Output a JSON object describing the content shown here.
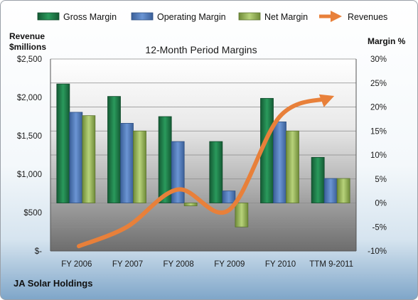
{
  "chart_data": {
    "type": "bar",
    "title": "12-Month Period Margins",
    "categories": [
      "FY 2006",
      "FY 2007",
      "FY 2008",
      "FY 2009",
      "FY 2010",
      "TTM 9-2011"
    ],
    "series": [
      {
        "name": "Gross Margin",
        "values": [
          24.8,
          22.2,
          18.0,
          12.8,
          21.8,
          9.5
        ],
        "color": "#1f7a4a"
      },
      {
        "name": "Operating Margin",
        "values": [
          18.9,
          16.6,
          12.8,
          2.5,
          16.9,
          5.1
        ],
        "color": "#4f7cc0"
      },
      {
        "name": "Net Margin",
        "values": [
          18.2,
          15.0,
          -0.6,
          -5.0,
          15.0,
          5.1
        ],
        "color": "#9aba5a"
      }
    ],
    "line_series": {
      "name": "Revenues",
      "values": [
        -9.0,
        -5.0,
        2.8,
        -1.5,
        18.0,
        21.8
      ],
      "color": "#e8803a"
    },
    "y_left": {
      "label_line1": "Revenue",
      "label_line2": "$millions",
      "ticks": [
        "$2,500",
        "$2,000",
        "$1,500",
        "$1,000",
        "$500",
        "$-"
      ]
    },
    "y_right": {
      "label": "Margin %",
      "ticks": [
        "30%",
        "25%",
        "20%",
        "15%",
        "10%",
        "5%",
        "0%",
        "-5%",
        "-10%"
      ],
      "ylim": [
        -10,
        30
      ]
    },
    "legend": "top",
    "grid": true
  },
  "company": "JA Solar Holdings"
}
